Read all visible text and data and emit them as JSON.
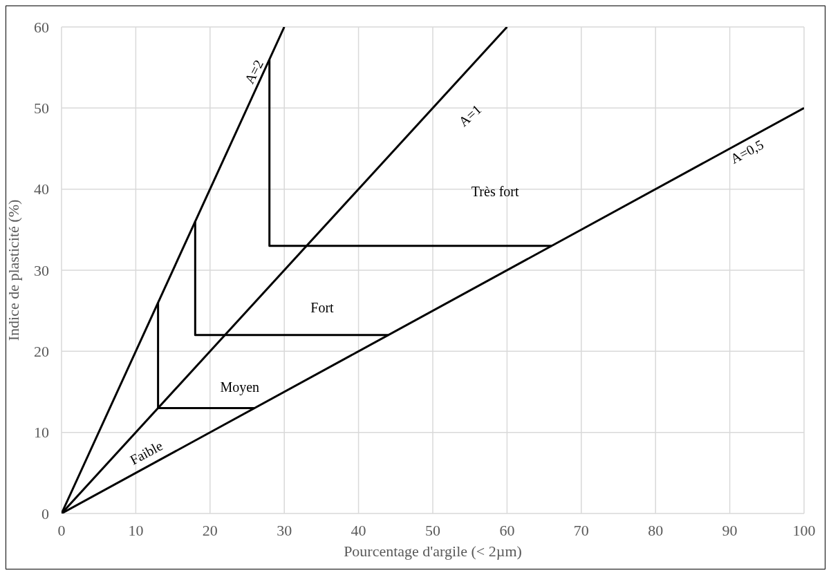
{
  "chart_data": {
    "type": "line",
    "xlabel": "Pourcentage d'argile (< 2µm)",
    "ylabel": "Indice de plasticité (%)",
    "xlim": [
      0,
      100
    ],
    "ylim": [
      0,
      60
    ],
    "xticks": [
      0,
      10,
      20,
      30,
      40,
      50,
      60,
      70,
      80,
      90,
      100
    ],
    "yticks": [
      0,
      10,
      20,
      30,
      40,
      50,
      60
    ],
    "grid": true,
    "marker": "none",
    "line_style": "solid",
    "series": [
      {
        "color": "#000000",
        "x": [
          0,
          30
        ],
        "values": [
          0,
          60
        ]
      },
      {
        "color": "#000000",
        "x": [
          0,
          60
        ],
        "values": [
          0,
          60
        ]
      },
      {
        "color": "#000000",
        "x": [
          0,
          100
        ],
        "values": [
          0,
          50
        ]
      },
      {
        "color": "#000000",
        "x": [
          13,
          13,
          26
        ],
        "values": [
          26,
          13,
          13
        ]
      },
      {
        "color": "#000000",
        "x": [
          18,
          18,
          44
        ],
        "values": [
          36,
          22,
          22
        ]
      },
      {
        "color": "#000000",
        "x": [
          28,
          28,
          66
        ],
        "values": [
          56,
          33,
          33
        ]
      }
    ],
    "annotations": [
      "A=2",
      "A=1",
      "A=0,5",
      "Très fort",
      "Fort",
      "Moyen",
      "Faible"
    ]
  }
}
